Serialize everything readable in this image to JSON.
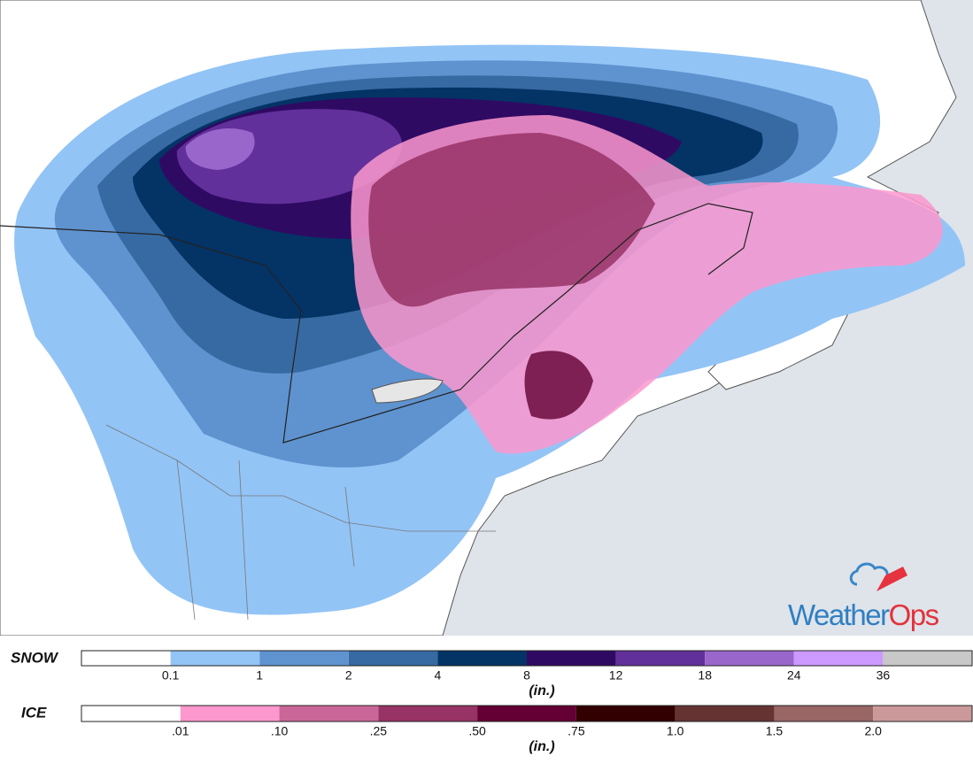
{
  "logo": {
    "part1": "Weather",
    "part2": "Ops"
  },
  "legend": {
    "snow": {
      "title": "SNOW",
      "unit": "(in.)",
      "colors": [
        "#ffffff",
        "#93c4f6",
        "#5f93cf",
        "#376aa2",
        "#043366",
        "#2f0a63",
        "#62309a",
        "#9966cc",
        "#cc99ff",
        "#c8c8c8"
      ],
      "labels": [
        "0.1",
        "1",
        "2",
        "4",
        "8",
        "12",
        "18",
        "24",
        "36"
      ]
    },
    "ice": {
      "title": "ICE",
      "unit": "(in.)",
      "colors": [
        "#ffffff",
        "#fc98ce",
        "#cb6699",
        "#983366",
        "#640033",
        "#320000",
        "#663333",
        "#996565",
        "#cb9999"
      ],
      "labels": [
        ".01",
        ".10",
        ".25",
        ".50",
        ".75",
        "1.0",
        "1.5",
        "2.0"
      ]
    }
  }
}
